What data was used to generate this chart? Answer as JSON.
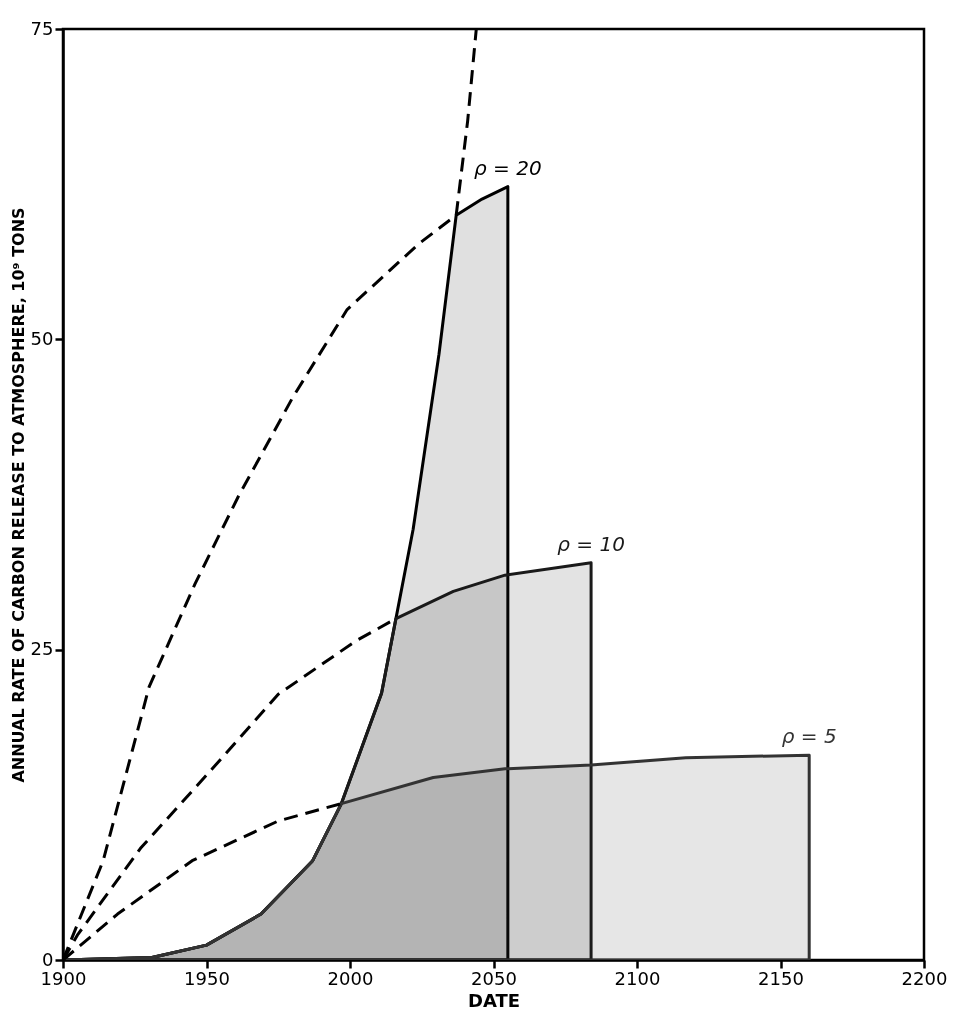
{
  "chart_data": {
    "type": "area",
    "xlabel": "DATE",
    "ylabel": "ANNUAL RATE OF CARBON RELEASE TO ATMOSPHERE, 10⁹ TONS",
    "xlim": [
      1900,
      2200
    ],
    "ylim": [
      0,
      75
    ],
    "xticks": [
      1900,
      1950,
      2000,
      2050,
      2100,
      2150,
      2200
    ],
    "yticks": [
      0,
      25,
      50,
      75
    ],
    "grid": false,
    "series": [
      {
        "name": "ρ = 20",
        "color": "#000000",
        "x": [
          1900,
          1931,
          1950,
          1969,
          1987,
          1997,
          2011,
          2016,
          2022,
          2031,
          2037,
          2046,
          2055,
          2055
        ],
        "values": [
          0,
          0.2,
          1.2,
          3.7,
          8,
          12.6,
          21.5,
          27.5,
          34.7,
          48.8,
          60,
          61.3,
          62.3,
          0
        ]
      },
      {
        "name": "ρ = 10",
        "color": "#1a1a1a",
        "x": [
          1900,
          1931,
          1950,
          1969,
          1987,
          1997,
          2011,
          2016,
          2036,
          2054,
          2084,
          2084
        ],
        "values": [
          0,
          0.2,
          1.2,
          3.7,
          8,
          12.6,
          21.5,
          27.5,
          29.7,
          31,
          32,
          0
        ]
      },
      {
        "name": "ρ = 5",
        "color": "#333333",
        "x": [
          1900,
          1931,
          1950,
          1969,
          1987,
          1997,
          2029,
          2054,
          2084,
          2117,
          2160,
          2160
        ],
        "values": [
          0,
          0.2,
          1.2,
          3.7,
          8,
          12.6,
          14.7,
          15.4,
          15.7,
          16.3,
          16.5,
          0
        ]
      },
      {
        "type": "line",
        "line_style": "dashed",
        "color": "#000000",
        "x": [
          1900,
          1914,
          1930,
          1946,
          1961,
          1980,
          1999,
          2024,
          2037
        ],
        "values": [
          0,
          8,
          22,
          30.3,
          37.3,
          45.3,
          52.4,
          57.7,
          60
        ]
      },
      {
        "type": "line",
        "line_style": "dashed",
        "color": "#000000",
        "x": [
          2037,
          2041,
          2044
        ],
        "values": [
          60,
          67.6,
          75
        ]
      },
      {
        "type": "line",
        "line_style": "dashed",
        "color": "#000000",
        "x": [
          1900,
          1905,
          1927,
          1952,
          1975,
          2002,
          2016
        ],
        "values": [
          0,
          2,
          9,
          15.4,
          21.4,
          25.7,
          27.5
        ]
      },
      {
        "type": "line",
        "line_style": "dashed",
        "color": "#000000",
        "x": [
          1900,
          1919,
          1945,
          1975,
          1997
        ],
        "values": [
          0,
          3.7,
          8,
          11.2,
          12.6
        ]
      }
    ]
  }
}
